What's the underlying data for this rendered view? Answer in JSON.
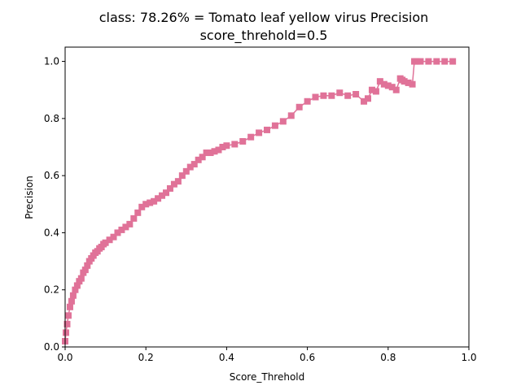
{
  "chart_data": {
    "type": "line",
    "title": "class: 78.26% = Tomato leaf yellow virus Precision",
    "subtitle": "score_threhold=0.5",
    "xlabel": "Score_Threhold",
    "ylabel": "Precision",
    "xlim": [
      0.0,
      1.0
    ],
    "ylim": [
      0.0,
      1.05
    ],
    "xticks": [
      "0.0",
      "0.2",
      "0.4",
      "0.6",
      "0.8",
      "1.0"
    ],
    "yticks": [
      "0.0",
      "0.2",
      "0.4",
      "0.6",
      "0.8",
      "1.0"
    ],
    "grid": false,
    "legend": false,
    "marker": "square",
    "line_color": "#e07298",
    "series": [
      {
        "x": [
          0.0,
          0.002,
          0.005,
          0.008,
          0.012,
          0.016,
          0.02,
          0.025,
          0.03,
          0.035,
          0.04,
          0.045,
          0.05,
          0.055,
          0.06,
          0.065,
          0.07,
          0.075,
          0.08,
          0.085,
          0.09,
          0.095,
          0.1,
          0.11,
          0.12,
          0.13,
          0.14,
          0.15,
          0.16,
          0.17,
          0.18,
          0.19,
          0.2,
          0.21,
          0.22,
          0.23,
          0.24,
          0.25,
          0.26,
          0.27,
          0.28,
          0.29,
          0.3,
          0.31,
          0.32,
          0.33,
          0.34,
          0.35,
          0.36,
          0.37,
          0.38,
          0.39,
          0.4,
          0.42,
          0.44,
          0.46,
          0.48,
          0.5,
          0.52,
          0.54,
          0.56,
          0.58,
          0.6,
          0.62,
          0.64,
          0.66,
          0.68,
          0.7,
          0.72,
          0.74,
          0.75,
          0.76,
          0.77,
          0.78,
          0.79,
          0.8,
          0.81,
          0.82,
          0.83,
          0.835,
          0.84,
          0.85,
          0.86,
          0.865,
          0.87,
          0.88,
          0.9,
          0.92,
          0.94,
          0.96
        ],
        "y": [
          0.02,
          0.05,
          0.08,
          0.11,
          0.14,
          0.16,
          0.18,
          0.2,
          0.215,
          0.23,
          0.24,
          0.26,
          0.27,
          0.285,
          0.3,
          0.31,
          0.32,
          0.33,
          0.335,
          0.345,
          0.35,
          0.36,
          0.365,
          0.375,
          0.385,
          0.4,
          0.41,
          0.42,
          0.43,
          0.45,
          0.47,
          0.49,
          0.5,
          0.505,
          0.51,
          0.52,
          0.53,
          0.54,
          0.555,
          0.57,
          0.58,
          0.6,
          0.615,
          0.63,
          0.64,
          0.655,
          0.665,
          0.68,
          0.68,
          0.685,
          0.69,
          0.7,
          0.705,
          0.71,
          0.72,
          0.735,
          0.75,
          0.76,
          0.775,
          0.79,
          0.81,
          0.84,
          0.86,
          0.875,
          0.88,
          0.88,
          0.89,
          0.88,
          0.885,
          0.86,
          0.87,
          0.9,
          0.895,
          0.93,
          0.92,
          0.915,
          0.91,
          0.9,
          0.94,
          0.935,
          0.93,
          0.925,
          0.92,
          1.0,
          1.0,
          1.0,
          1.0,
          1.0,
          1.0,
          1.0
        ]
      }
    ]
  }
}
